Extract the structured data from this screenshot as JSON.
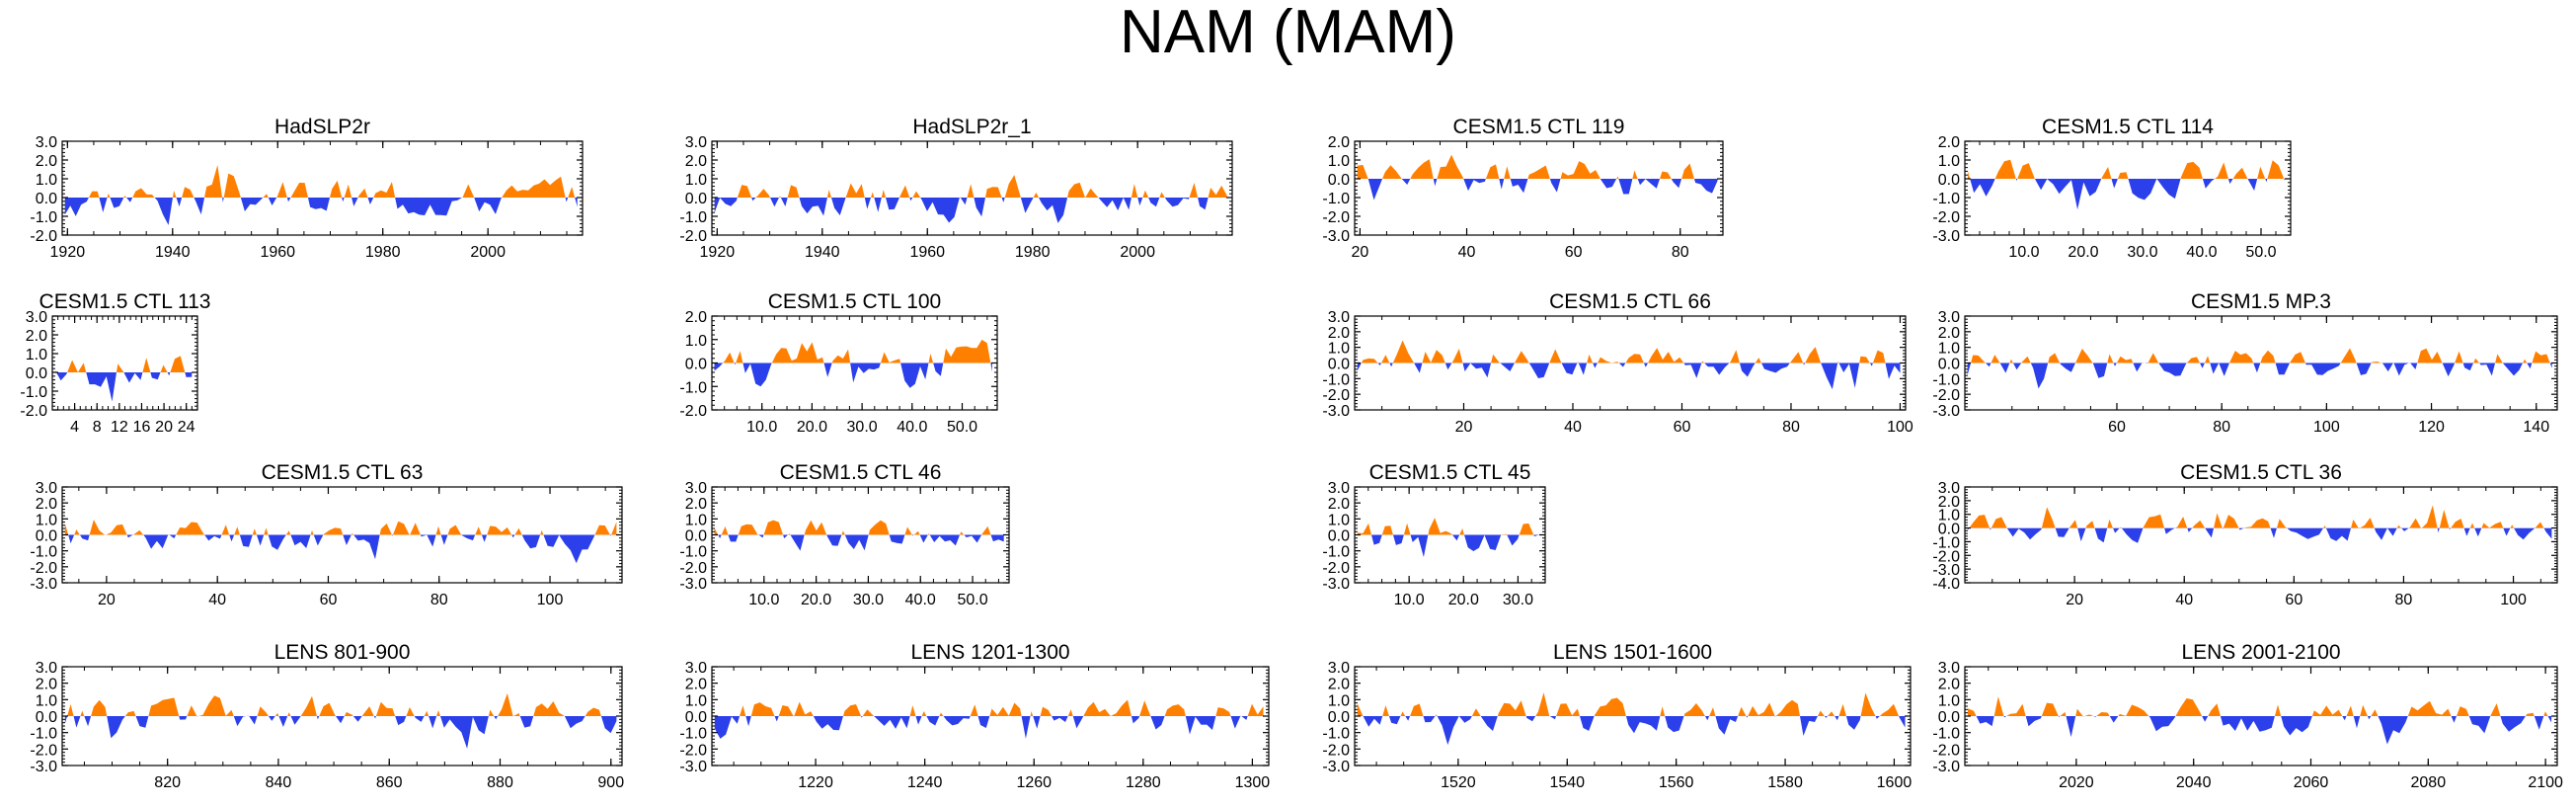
{
  "page": {
    "title": "NAM (MAM)"
  },
  "colors": {
    "positive": "#ff8000",
    "negative": "#2b3fea",
    "axis": "#000000"
  },
  "chart_data": [
    {
      "type": "area",
      "title": "HadSLP2r",
      "xlim": [
        1919,
        2018
      ],
      "ylim": [
        -2,
        3
      ],
      "yticks": [
        "3.0",
        "2.0",
        "1.0",
        "0.0",
        "-1.0",
        "-2.0"
      ],
      "xticks": [
        1920,
        1940,
        1960,
        1980,
        2000
      ],
      "xtick_labels": [
        "1920",
        "1940",
        "1960",
        "1980",
        "2000"
      ]
    },
    {
      "type": "area",
      "title": "HadSLP2r_1",
      "xlim": [
        1919,
        2018
      ],
      "ylim": [
        -2,
        3
      ],
      "yticks": [
        "3.0",
        "2.0",
        "1.0",
        "0.0",
        "-1.0",
        "-2.0"
      ],
      "xticks": [
        1920,
        1940,
        1960,
        1980,
        2000
      ],
      "xtick_labels": [
        "1920",
        "1940",
        "1960",
        "1980",
        "2000"
      ]
    },
    {
      "type": "area",
      "title": "CESM1.5 CTL 119",
      "xlim": [
        19,
        88
      ],
      "ylim": [
        -3,
        2
      ],
      "yticks": [
        "2.0",
        "1.0",
        "0.0",
        "-1.0",
        "-2.0",
        "-3.0"
      ],
      "xticks": [
        20,
        40,
        60,
        80
      ],
      "xtick_labels": [
        "20",
        "40",
        "60",
        "80"
      ]
    },
    {
      "type": "area",
      "title": "CESM1.5 CTL 114",
      "xlim": [
        0,
        55
      ],
      "ylim": [
        -3,
        2
      ],
      "yticks": [
        "2.0",
        "1.0",
        "0.0",
        "-1.0",
        "-2.0",
        "-3.0"
      ],
      "xticks": [
        10,
        20,
        30,
        40,
        50
      ],
      "xtick_labels": [
        "10.0",
        "20.0",
        "30.0",
        "40.0",
        "50.0"
      ]
    },
    {
      "type": "area",
      "title": "CESM1.5 CTL 113",
      "xlim": [
        0,
        26
      ],
      "ylim": [
        -2,
        3
      ],
      "yticks": [
        "3.0",
        "2.0",
        "1.0",
        "0.0",
        "-1.0",
        "-2.0"
      ],
      "xticks": [
        4,
        8,
        12,
        16,
        20,
        24
      ],
      "xtick_labels": [
        "4",
        "8",
        "12",
        "16",
        "20",
        "24"
      ]
    },
    {
      "type": "area",
      "title": "CESM1.5 CTL 100",
      "xlim": [
        0,
        57
      ],
      "ylim": [
        -2,
        2
      ],
      "yticks": [
        "2.0",
        "1.0",
        "0.0",
        "-1.0",
        "-2.0"
      ],
      "xticks": [
        10,
        20,
        30,
        40,
        50
      ],
      "xtick_labels": [
        "10.0",
        "20.0",
        "30.0",
        "40.0",
        "50.0"
      ]
    },
    {
      "type": "area",
      "title": "CESM1.5 CTL 66",
      "xlim": [
        0,
        101
      ],
      "ylim": [
        -3,
        3
      ],
      "yticks": [
        "3.0",
        "2.0",
        "1.0",
        "0.0",
        "-1.0",
        "-2.0",
        "-3.0"
      ],
      "xticks": [
        20,
        40,
        60,
        80,
        100
      ],
      "xtick_labels": [
        "20",
        "40",
        "60",
        "80",
        "100"
      ]
    },
    {
      "type": "area",
      "title": "CESM1.5 MP.3",
      "xlim": [
        31,
        144
      ],
      "ylim": [
        -3,
        3
      ],
      "yticks": [
        "3.0",
        "2.0",
        "1.0",
        "0.0",
        "-1.0",
        "-2.0",
        "-3.0"
      ],
      "xticks": [
        60,
        80,
        100,
        120,
        140
      ],
      "xtick_labels": [
        "60",
        "80",
        "100",
        "120",
        "140"
      ]
    },
    {
      "type": "area",
      "title": "CESM1.5 CTL 63",
      "xlim": [
        12,
        113
      ],
      "ylim": [
        -3,
        3
      ],
      "yticks": [
        "3.0",
        "2.0",
        "1.0",
        "0.0",
        "-1.0",
        "-2.0",
        "-3.0"
      ],
      "xticks": [
        20,
        40,
        60,
        80,
        100
      ],
      "xtick_labels": [
        "20",
        "40",
        "60",
        "80",
        "100"
      ]
    },
    {
      "type": "area",
      "title": "CESM1.5 CTL 46",
      "xlim": [
        0,
        57
      ],
      "ylim": [
        -3,
        3
      ],
      "yticks": [
        "3.0",
        "2.0",
        "1.0",
        "0.0",
        "-1.0",
        "-2.0",
        "-3.0"
      ],
      "xticks": [
        10,
        20,
        30,
        40,
        50
      ],
      "xtick_labels": [
        "10.0",
        "20.0",
        "30.0",
        "40.0",
        "50.0"
      ]
    },
    {
      "type": "area",
      "title": "CESM1.5 CTL 45",
      "xlim": [
        0,
        35
      ],
      "ylim": [
        -3,
        3
      ],
      "yticks": [
        "3.0",
        "2.0",
        "1.0",
        "0.0",
        "-1.0",
        "-2.0",
        "-3.0"
      ],
      "xticks": [
        10,
        20,
        30
      ],
      "xtick_labels": [
        "10.0",
        "20.0",
        "30.0"
      ]
    },
    {
      "type": "area",
      "title": "CESM1.5 CTL 36",
      "xlim": [
        0,
        108
      ],
      "ylim": [
        -4,
        3
      ],
      "yticks": [
        "3.0",
        "2.0",
        "1.0",
        "0.0",
        "-1.0",
        "-2.0",
        "-3.0",
        "-4.0"
      ],
      "xticks": [
        20,
        40,
        60,
        80,
        100
      ],
      "xtick_labels": [
        "20",
        "40",
        "60",
        "80",
        "100"
      ]
    },
    {
      "type": "area",
      "title": "LENS 801-900",
      "xlim": [
        801,
        902
      ],
      "ylim": [
        -3,
        3
      ],
      "yticks": [
        "3.0",
        "2.0",
        "1.0",
        "0.0",
        "-1.0",
        "-2.0",
        "-3.0"
      ],
      "xticks": [
        820,
        840,
        860,
        880,
        900
      ],
      "xtick_labels": [
        "820",
        "840",
        "860",
        "880",
        "900"
      ]
    },
    {
      "type": "area",
      "title": "LENS 1201-1300",
      "xlim": [
        1201,
        1303
      ],
      "ylim": [
        -3,
        3
      ],
      "yticks": [
        "3.0",
        "2.0",
        "1.0",
        "0.0",
        "-1.0",
        "-2.0",
        "-3.0"
      ],
      "xticks": [
        1220,
        1240,
        1260,
        1280,
        1300
      ],
      "xtick_labels": [
        "1220",
        "1240",
        "1260",
        "1280",
        "1300"
      ]
    },
    {
      "type": "area",
      "title": "LENS 1501-1600",
      "xlim": [
        1501,
        1603
      ],
      "ylim": [
        -3,
        3
      ],
      "yticks": [
        "3.0",
        "2.0",
        "1.0",
        "0.0",
        "-1.0",
        "-2.0",
        "-3.0"
      ],
      "xticks": [
        1520,
        1540,
        1560,
        1580,
        1600
      ],
      "xtick_labels": [
        "1520",
        "1540",
        "1560",
        "1580",
        "1600"
      ]
    },
    {
      "type": "area",
      "title": "LENS 2001-2100",
      "xlim": [
        2001,
        2102
      ],
      "ylim": [
        -3,
        3
      ],
      "yticks": [
        "3.0",
        "2.0",
        "1.0",
        "0.0",
        "-1.0",
        "-2.0",
        "-3.0"
      ],
      "xticks": [
        2020,
        2040,
        2060,
        2080,
        2100
      ],
      "xtick_labels": [
        "2020",
        "2040",
        "2060",
        "2080",
        "2100"
      ]
    }
  ]
}
